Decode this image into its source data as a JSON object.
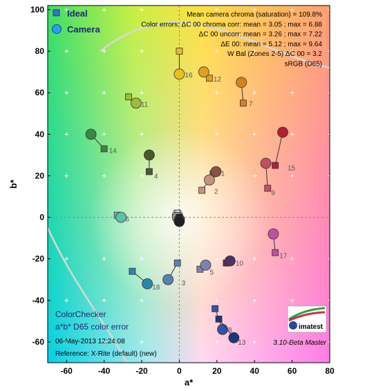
{
  "chart_data": {
    "type": "scatter",
    "xlabel": "a*",
    "ylabel": "b*",
    "xlim": [
      -70,
      80
    ],
    "ylim": [
      -70,
      102
    ],
    "xticks": [
      -60,
      -40,
      -20,
      0,
      20,
      40,
      60,
      80
    ],
    "yticks": [
      -60,
      -40,
      -20,
      0,
      20,
      40,
      60,
      80,
      100
    ],
    "legend": [
      {
        "name": "Ideal",
        "marker": "square",
        "color": "#3a6fd0"
      },
      {
        "name": "Camera",
        "marker": "circle",
        "color": "#2a9ff0"
      }
    ],
    "info_lines": [
      "Mean camera chroma (saturation) = 109.8%",
      "Color errors: ΔC 00 chroma corr:  mean = 3.05 ;  max = 6.88",
      "ΔC 00 uncorr:  mean = 3.26 ;  max = 7.22",
      "ΔE 00:  mean = 5.12 ;  max = 9.64",
      "W Bal (Zones 2-5) ΔC 00 = 3.2",
      "sRGB (D65)"
    ],
    "corner": {
      "title": "ColorChecker",
      "subtitle": "a*b* D65 color error",
      "timestamp": "06-May-2013 12:24:08",
      "reference": "Reference: X-Rite (default) (new)"
    },
    "version": "3.10-Beta  Master",
    "logo_text": "imatest",
    "patches": [
      {
        "id": "1",
        "ideal": [
          18,
          21
        ],
        "camera": [
          19.5,
          22
        ],
        "color": "#8a5040"
      },
      {
        "id": "2",
        "ideal": [
          12,
          13
        ],
        "camera": [
          16,
          18
        ],
        "color": "#c89080"
      },
      {
        "id": "3",
        "ideal": [
          -1,
          -22
        ],
        "camera": [
          -6,
          -30
        ],
        "color": "#5a80b0"
      },
      {
        "id": "4",
        "ideal": [
          -16,
          22
        ],
        "camera": [
          -16,
          30
        ],
        "color": "#4a5a28"
      },
      {
        "id": "5",
        "ideal": [
          11,
          -25
        ],
        "camera": [
          14,
          -23
        ],
        "color": "#8080b0"
      },
      {
        "id": "6",
        "ideal": [
          -33,
          1
        ],
        "camera": [
          -31,
          0
        ],
        "color": "#60c0a8"
      },
      {
        "id": "7",
        "ideal": [
          34,
          55
        ],
        "camera": [
          33,
          65
        ],
        "color": "#d88020"
      },
      {
        "id": "8",
        "ideal": [
          19,
          -44
        ],
        "camera": [
          23,
          -54
        ],
        "color": "#3850a8"
      },
      {
        "id": "9",
        "ideal": [
          47,
          14
        ],
        "camera": [
          46,
          26
        ],
        "color": "#c05060"
      },
      {
        "id": "10",
        "ideal": [
          25,
          -22
        ],
        "camera": [
          27,
          -21
        ],
        "color": "#503060"
      },
      {
        "id": "11",
        "ideal": [
          -27,
          58
        ],
        "camera": [
          -23,
          55
        ],
        "color": "#a0b840"
      },
      {
        "id": "12",
        "ideal": [
          16,
          67
        ],
        "camera": [
          13,
          70
        ],
        "color": "#e0a020"
      },
      {
        "id": "13",
        "ideal": [
          21,
          -49
        ],
        "camera": [
          29,
          -58
        ],
        "color": "#183878"
      },
      {
        "id": "14",
        "ideal": [
          -40,
          33
        ],
        "camera": [
          -47,
          40
        ],
        "color": "#388848"
      },
      {
        "id": "15",
        "ideal": [
          51,
          25
        ],
        "camera": [
          55,
          41
        ],
        "color": "#b02030"
      },
      {
        "id": "16",
        "ideal": [
          0,
          80
        ],
        "camera": [
          0,
          69
        ],
        "color": "#e8c020"
      },
      {
        "id": "17",
        "ideal": [
          51,
          -17
        ],
        "camera": [
          50,
          -8
        ],
        "color": "#c050a0"
      },
      {
        "id": "18",
        "ideal": [
          -25,
          -26
        ],
        "camera": [
          -17,
          -32
        ],
        "color": "#2888b0"
      },
      {
        "id": "19",
        "ideal": [
          -1,
          2
        ],
        "camera": [
          -1,
          1
        ],
        "color": "#f4f4f4"
      },
      {
        "id": "20",
        "ideal": [
          -1,
          1
        ],
        "camera": [
          -1,
          0
        ],
        "color": "#c8c8c8"
      },
      {
        "id": "21",
        "ideal": [
          0,
          0
        ],
        "camera": [
          -1,
          0
        ],
        "color": "#a0a0a0"
      },
      {
        "id": "22",
        "ideal": [
          0,
          0
        ],
        "camera": [
          0,
          -1
        ],
        "color": "#787878"
      },
      {
        "id": "23",
        "ideal": [
          0,
          0
        ],
        "camera": [
          0,
          -1
        ],
        "color": "#505050"
      },
      {
        "id": "24",
        "ideal": [
          0,
          0
        ],
        "camera": [
          0,
          -2
        ],
        "color": "#202020"
      }
    ]
  }
}
